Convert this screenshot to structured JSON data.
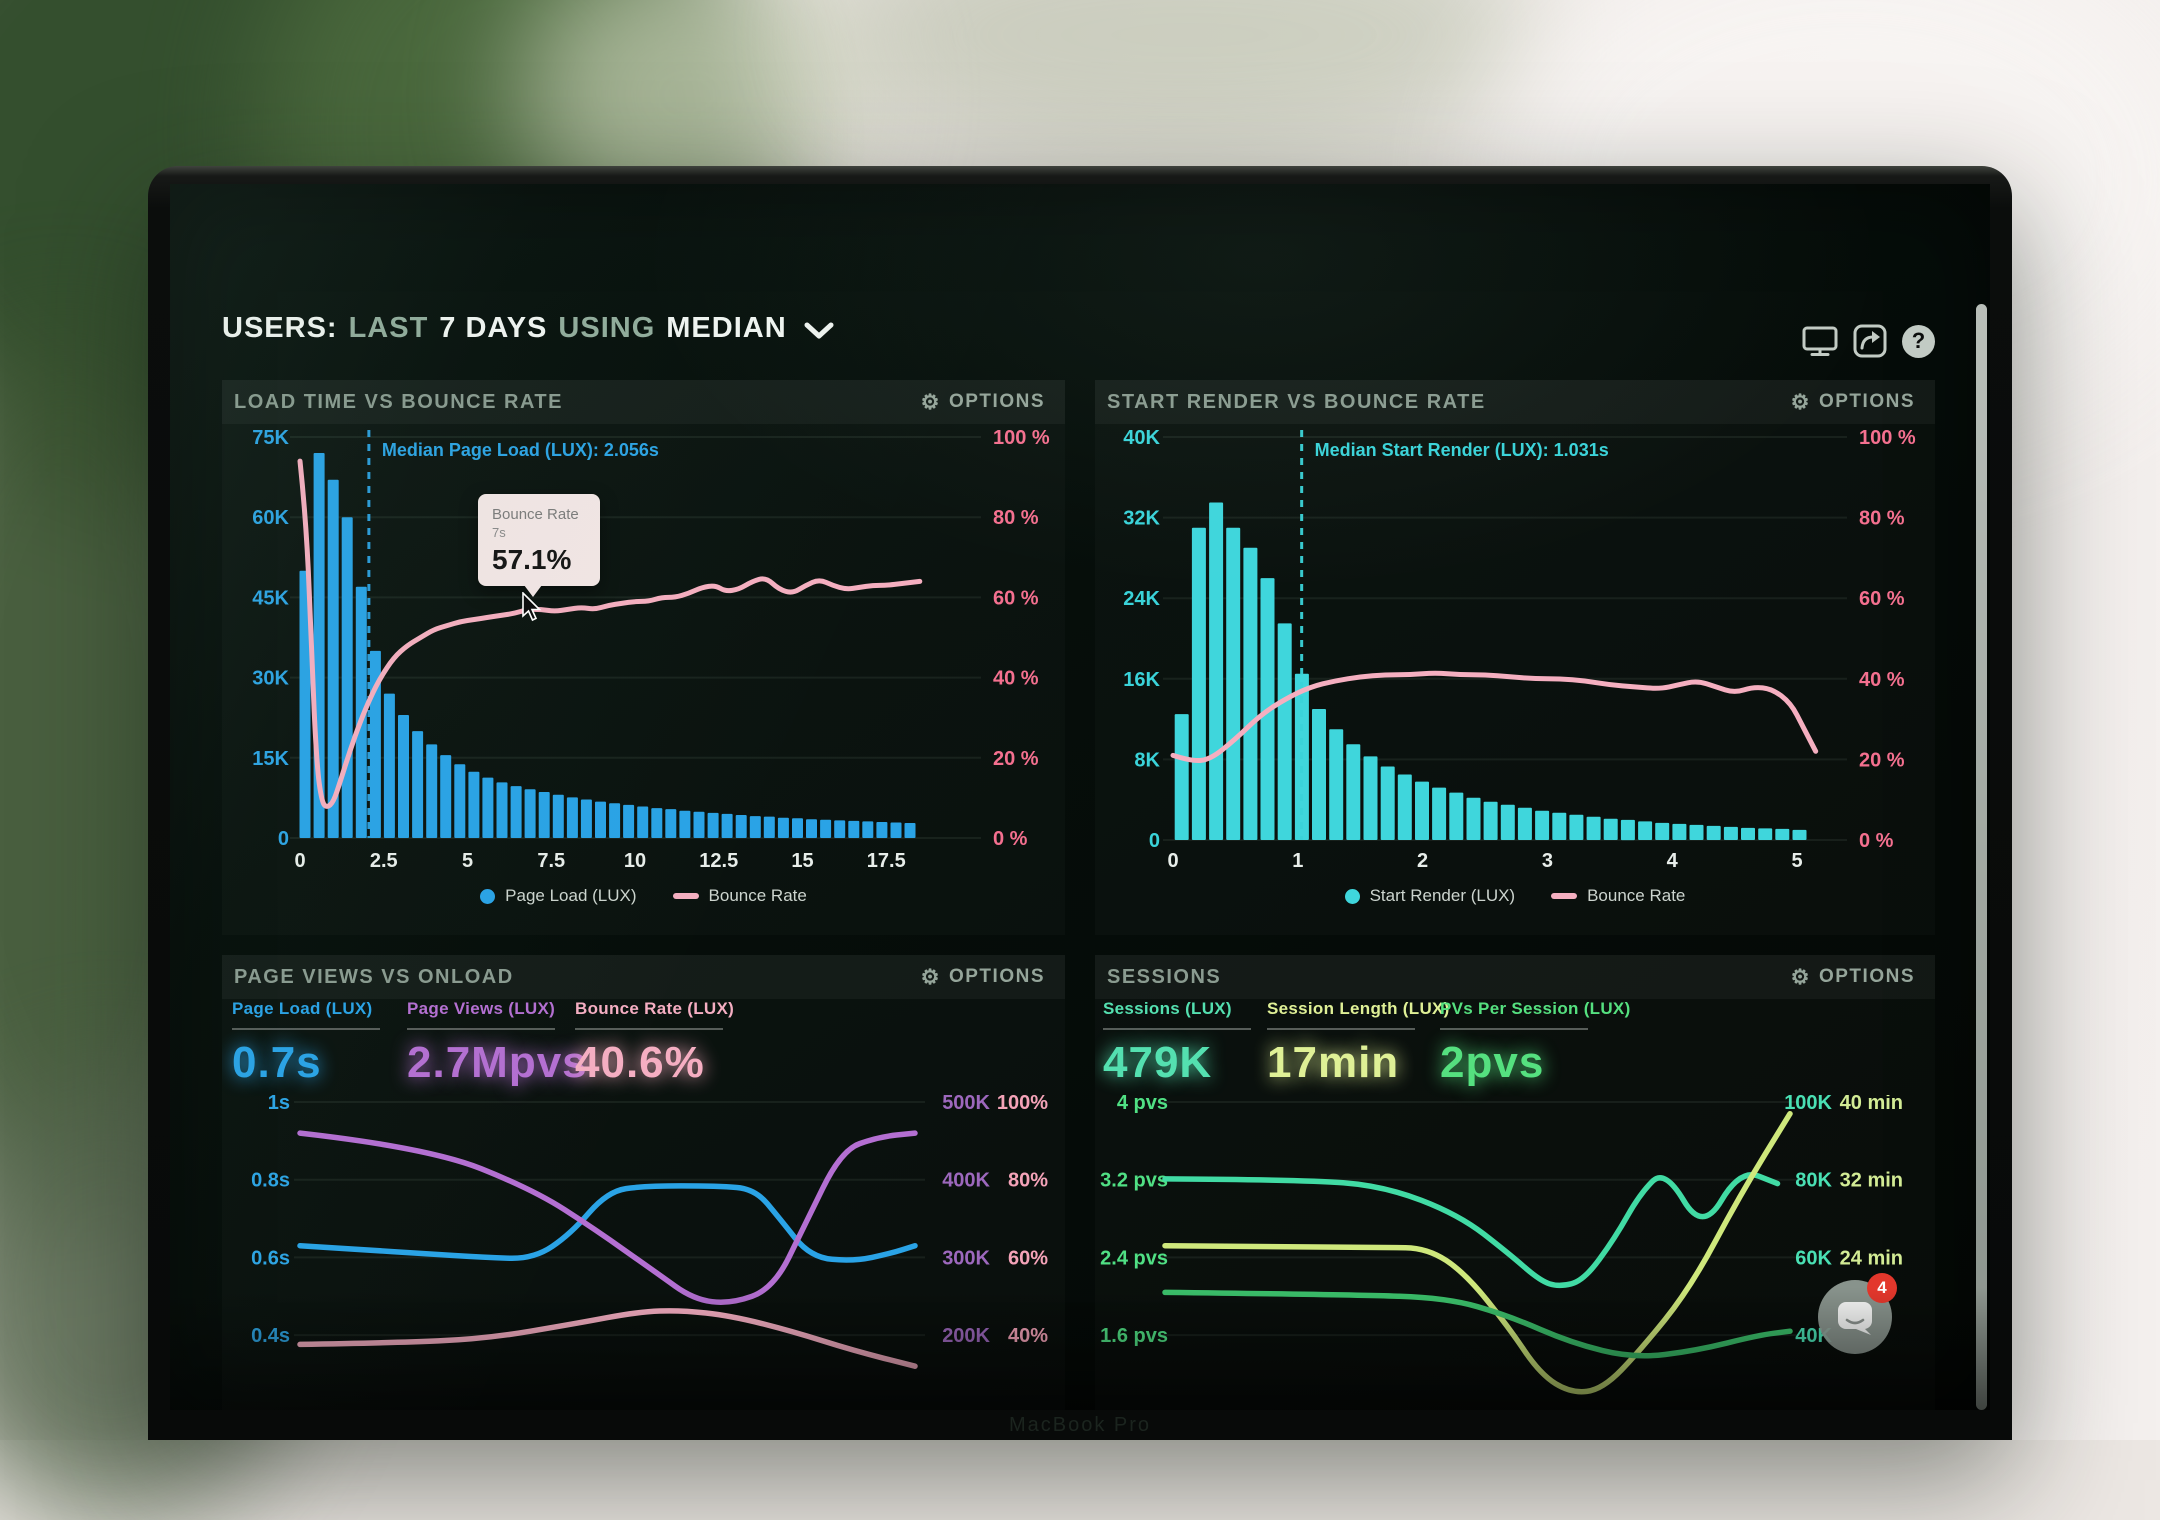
{
  "header": {
    "title_parts": [
      {
        "text": "USERS:",
        "style": "strong"
      },
      {
        "text": "LAST",
        "style": "muted"
      },
      {
        "text": "7 DAYS",
        "style": "strong"
      },
      {
        "text": "USING",
        "style": "muted"
      },
      {
        "text": "MEDIAN",
        "style": "strong"
      }
    ]
  },
  "icons": {
    "gear": "⚙",
    "help": "?"
  },
  "panels": {
    "load_time": {
      "title": "LOAD TIME VS BOUNCE RATE",
      "options_label": "OPTIONS",
      "legend": [
        {
          "label": "Page Load (LUX)",
          "marker": "dot",
          "color": "#2aa3e6"
        },
        {
          "label": "Bounce Rate",
          "marker": "dash",
          "color": "#f5afc0"
        }
      ],
      "tooltip": {
        "title": "Bounce Rate",
        "subtitle": "7s",
        "value": "57.1%"
      }
    },
    "start_render": {
      "title": "START RENDER VS BOUNCE RATE",
      "options_label": "OPTIONS",
      "legend": [
        {
          "label": "Start Render (LUX)",
          "marker": "dot",
          "color": "#3fd6dc"
        },
        {
          "label": "Bounce Rate",
          "marker": "dash",
          "color": "#f5afc0"
        }
      ]
    },
    "page_views": {
      "title": "PAGE VIEWS VS ONLOAD",
      "options_label": "OPTIONS",
      "metrics": [
        {
          "label": "Page Load (LUX)",
          "value": "0.7s",
          "color": "#2aa3e6"
        },
        {
          "label": "Page Views (LUX)",
          "value": "2.7Mpvs",
          "color": "#b46fd2"
        },
        {
          "label": "Bounce Rate (LUX)",
          "value": "40.6%",
          "color": "#f5aec2"
        }
      ]
    },
    "sessions": {
      "title": "SESSIONS",
      "options_label": "OPTIONS",
      "metrics": [
        {
          "label": "Sessions (LUX)",
          "value": "479K",
          "color": "#54e0b0"
        },
        {
          "label": "Session Length (LUX)",
          "value": "17min",
          "color": "#dff096"
        },
        {
          "label": "PVs Per Session (LUX)",
          "value": "2pvs",
          "color": "#55e07f"
        }
      ]
    }
  },
  "chart_data": [
    {
      "id": "load-time-vs-bounce-rate",
      "type": "bar+line",
      "title": "LOAD TIME VS BOUNCE RATE",
      "x_axis": {
        "ticks": [
          "0",
          "2.5",
          "5",
          "7.5",
          "10",
          "12.5",
          "15",
          "17.5"
        ],
        "tick_step_s": 2.5,
        "unit": "seconds"
      },
      "left_axis": {
        "ticks": [
          "75K",
          "60K",
          "45K",
          "30K",
          "15K",
          "0"
        ],
        "top_value_k": 75,
        "color": "#2da4e4"
      },
      "right_axis": {
        "ticks": [
          "100 %",
          "80 %",
          "60 %",
          "40 %",
          "20 %",
          "0 %"
        ],
        "top_value_pct": 100,
        "color": "#f4708f"
      },
      "bars": {
        "name": "Page Load (LUX)",
        "color": "#2aa3e6",
        "first_x_s": 0.15,
        "step_s": 0.42,
        "values_k": [
          50,
          72,
          67,
          60,
          47,
          35,
          27,
          23,
          20,
          17.5,
          15.5,
          13.8,
          12.4,
          11.3,
          10.4,
          9.7,
          9.1,
          8.6,
          8.1,
          7.6,
          7.2,
          6.8,
          6.5,
          6.2,
          5.9,
          5.6,
          5.4,
          5.1,
          4.9,
          4.7,
          4.5,
          4.3,
          4.1,
          4.0,
          3.8,
          3.7,
          3.5,
          3.4,
          3.3,
          3.2,
          3.1,
          3.0,
          2.9,
          2.8
        ]
      },
      "line": {
        "name": "Bounce Rate",
        "color": "#f5afc0",
        "points_s_pct": [
          [
            0,
            94
          ],
          [
            0.2,
            78
          ],
          [
            0.35,
            45
          ],
          [
            0.5,
            18
          ],
          [
            0.65,
            9
          ],
          [
            0.8,
            7.5
          ],
          [
            1.0,
            9
          ],
          [
            1.2,
            14
          ],
          [
            1.5,
            22
          ],
          [
            1.8,
            29
          ],
          [
            2.1,
            35
          ],
          [
            2.4,
            40
          ],
          [
            2.8,
            45
          ],
          [
            3.2,
            48
          ],
          [
            3.6,
            50
          ],
          [
            4.0,
            52
          ],
          [
            4.4,
            53
          ],
          [
            4.8,
            54
          ],
          [
            5.2,
            54.5
          ],
          [
            5.6,
            55
          ],
          [
            6.0,
            55.5
          ],
          [
            6.4,
            56
          ],
          [
            6.8,
            57
          ],
          [
            7.2,
            57
          ],
          [
            7.6,
            56.5
          ],
          [
            8.0,
            57
          ],
          [
            8.4,
            57.5
          ],
          [
            8.8,
            57
          ],
          [
            9.2,
            58
          ],
          [
            9.6,
            58.5
          ],
          [
            10.0,
            59
          ],
          [
            10.4,
            59
          ],
          [
            10.8,
            60
          ],
          [
            11.2,
            60
          ],
          [
            11.6,
            61
          ],
          [
            12.0,
            62.5
          ],
          [
            12.4,
            63
          ],
          [
            12.7,
            61.5
          ],
          [
            13.1,
            62
          ],
          [
            13.5,
            64
          ],
          [
            13.9,
            65
          ],
          [
            14.3,
            62
          ],
          [
            14.7,
            61
          ],
          [
            15.1,
            63
          ],
          [
            15.5,
            64.5
          ],
          [
            15.9,
            63
          ],
          [
            16.3,
            62
          ],
          [
            16.7,
            62.5
          ],
          [
            17.1,
            63
          ],
          [
            17.5,
            63
          ],
          [
            18.0,
            63.5
          ],
          [
            18.5,
            64
          ]
        ]
      },
      "median": {
        "value_s": 2.056,
        "label": "Median Page Load (LUX): 2.056s",
        "color": "#2da4e4"
      }
    },
    {
      "id": "start-render-vs-bounce-rate",
      "type": "bar+line",
      "title": "START RENDER VS BOUNCE RATE",
      "x_axis": {
        "ticks": [
          "0",
          "1",
          "2",
          "3",
          "4",
          "5"
        ],
        "tick_step_s": 1,
        "unit": "seconds"
      },
      "left_axis": {
        "ticks": [
          "40K",
          "32K",
          "24K",
          "16K",
          "8K",
          "0"
        ],
        "top_value_k": 40,
        "color": "#3ad3d9"
      },
      "right_axis": {
        "ticks": [
          "100 %",
          "80 %",
          "60 %",
          "40 %",
          "20 %",
          "0 %"
        ],
        "top_value_pct": 100,
        "color": "#f4708f"
      },
      "bars": {
        "name": "Start Render (LUX)",
        "color": "#3fd6dc",
        "first_x_s": 0.07,
        "step_s": 0.1375,
        "values_k": [
          12.5,
          31,
          33.5,
          31,
          29,
          26,
          21.5,
          16.5,
          13,
          11,
          9.5,
          8.3,
          7.3,
          6.5,
          5.8,
          5.2,
          4.7,
          4.2,
          3.8,
          3.5,
          3.2,
          2.9,
          2.7,
          2.5,
          2.3,
          2.1,
          2.0,
          1.85,
          1.7,
          1.6,
          1.5,
          1.4,
          1.3,
          1.2,
          1.15,
          1.1,
          1.0
        ]
      },
      "line": {
        "name": "Bounce Rate",
        "color": "#f5afc0",
        "points_s_pct": [
          [
            0,
            21
          ],
          [
            0.15,
            19.5
          ],
          [
            0.3,
            20
          ],
          [
            0.5,
            25
          ],
          [
            0.7,
            31
          ],
          [
            0.9,
            35
          ],
          [
            1.1,
            38
          ],
          [
            1.3,
            39.5
          ],
          [
            1.5,
            40.5
          ],
          [
            1.7,
            41
          ],
          [
            1.9,
            41
          ],
          [
            2.1,
            41.5
          ],
          [
            2.3,
            41
          ],
          [
            2.5,
            41
          ],
          [
            2.7,
            40.5
          ],
          [
            2.9,
            40
          ],
          [
            3.1,
            40
          ],
          [
            3.3,
            39.5
          ],
          [
            3.5,
            38.5
          ],
          [
            3.7,
            38
          ],
          [
            3.9,
            37.5
          ],
          [
            4.05,
            38.5
          ],
          [
            4.2,
            39.5
          ],
          [
            4.35,
            38
          ],
          [
            4.5,
            36.5
          ],
          [
            4.65,
            38
          ],
          [
            4.8,
            37.5
          ],
          [
            4.95,
            34
          ],
          [
            5.05,
            28
          ],
          [
            5.15,
            22
          ]
        ]
      },
      "median": {
        "value_s": 1.031,
        "label": "Median Start Render (LUX): 1.031s",
        "color": "#3ad3d9"
      }
    },
    {
      "id": "page-views-vs-onload",
      "type": "multi-line",
      "title": "PAGE VIEWS VS ONLOAD",
      "left_axis": {
        "ticks": [
          "1s",
          "0.8s",
          "0.6s",
          "0.4s"
        ],
        "color": "#2da4e4"
      },
      "right_axis_views": {
        "ticks": [
          "500K",
          "400K",
          "300K",
          "200K"
        ],
        "color": "#9d68bd"
      },
      "right_axis_bounce": {
        "ticks": [
          "100%",
          "80%",
          "60%",
          "40%"
        ],
        "color": "#f4a3b8"
      },
      "series": [
        {
          "name": "Page Load (LUX)",
          "color": "#2aa3e6",
          "points": [
            [
              0,
              1.85
            ],
            [
              0.1,
              1.9
            ],
            [
              0.2,
              1.95
            ],
            [
              0.3,
              2.0
            ],
            [
              0.38,
              2.02
            ],
            [
              0.44,
              1.7
            ],
            [
              0.5,
              1.15
            ],
            [
              0.56,
              1.08
            ],
            [
              0.68,
              1.08
            ],
            [
              0.74,
              1.12
            ],
            [
              0.78,
              1.5
            ],
            [
              0.83,
              2.0
            ],
            [
              0.9,
              2.05
            ],
            [
              0.96,
              1.95
            ],
            [
              1,
              1.85
            ]
          ]
        },
        {
          "name": "Page Views (LUX)",
          "color": "#b46fd2",
          "points": [
            [
              0,
              0.4
            ],
            [
              0.21,
              0.59
            ],
            [
              0.38,
              1.13
            ],
            [
              0.48,
              1.64
            ],
            [
              0.58,
              2.2
            ],
            [
              0.64,
              2.54
            ],
            [
              0.7,
              2.6
            ],
            [
              0.77,
              2.4
            ],
            [
              0.82,
              1.6
            ],
            [
              0.88,
              0.62
            ],
            [
              0.94,
              0.45
            ],
            [
              1,
              0.4
            ]
          ]
        },
        {
          "name": "Bounce Rate (LUX)",
          "color": "#f5aec2",
          "points": [
            [
              0,
              3.12
            ],
            [
              0.15,
              3.1
            ],
            [
              0.3,
              3.05
            ],
            [
              0.45,
              2.85
            ],
            [
              0.55,
              2.7
            ],
            [
              0.62,
              2.68
            ],
            [
              0.7,
              2.75
            ],
            [
              0.8,
              2.95
            ],
            [
              0.9,
              3.2
            ],
            [
              1,
              3.4
            ]
          ]
        }
      ]
    },
    {
      "id": "sessions",
      "type": "multi-line",
      "title": "SESSIONS",
      "left_axis": {
        "ticks": [
          "4 pvs",
          "3.2 pvs",
          "2.4 pvs",
          "1.6 pvs"
        ],
        "color": "#50e084"
      },
      "right_axis_sessions": {
        "ticks": [
          "100K",
          "80K",
          "60K",
          "40K"
        ],
        "color": "#4ae0b4"
      },
      "right_axis_length": {
        "ticks": [
          "40 min",
          "32 min",
          "24 min",
          ""
        ],
        "color": "#d3ec95"
      },
      "series": [
        {
          "name": "Sessions (LUX)",
          "color": "#41dba4",
          "points": [
            [
              0,
              0.99
            ],
            [
              0.22,
              1.0
            ],
            [
              0.35,
              1.08
            ],
            [
              0.47,
              1.45
            ],
            [
              0.55,
              1.95
            ],
            [
              0.6,
              2.3
            ],
            [
              0.63,
              2.38
            ],
            [
              0.67,
              2.3
            ],
            [
              0.72,
              1.75
            ],
            [
              0.76,
              1.18
            ],
            [
              0.8,
              0.86
            ],
            [
              0.86,
              1.68
            ],
            [
              0.92,
              0.86
            ],
            [
              0.98,
              1.05
            ]
          ]
        },
        {
          "name": "Session Length (LUX)",
          "color": "#cfe87c",
          "points": [
            [
              0,
              1.85
            ],
            [
              0.35,
              1.87
            ],
            [
              0.42,
              1.88
            ],
            [
              0.48,
              2.2
            ],
            [
              0.55,
              2.9
            ],
            [
              0.6,
              3.5
            ],
            [
              0.65,
              3.75
            ],
            [
              0.7,
              3.7
            ],
            [
              0.76,
              3.2
            ],
            [
              0.84,
              2.4
            ],
            [
              0.92,
              1.2
            ],
            [
              1,
              0.15
            ]
          ]
        },
        {
          "name": "PVs Per Session (LUX)",
          "color": "#3bbf6a",
          "points": [
            [
              0,
              2.45
            ],
            [
              0.3,
              2.48
            ],
            [
              0.45,
              2.52
            ],
            [
              0.55,
              2.75
            ],
            [
              0.65,
              3.1
            ],
            [
              0.75,
              3.3
            ],
            [
              0.85,
              3.2
            ],
            [
              0.95,
              3.0
            ],
            [
              1,
              2.95
            ]
          ]
        }
      ]
    }
  ],
  "chat_widget": {
    "badge": "4"
  },
  "device": {
    "brand_label": "MacBook Pro"
  }
}
